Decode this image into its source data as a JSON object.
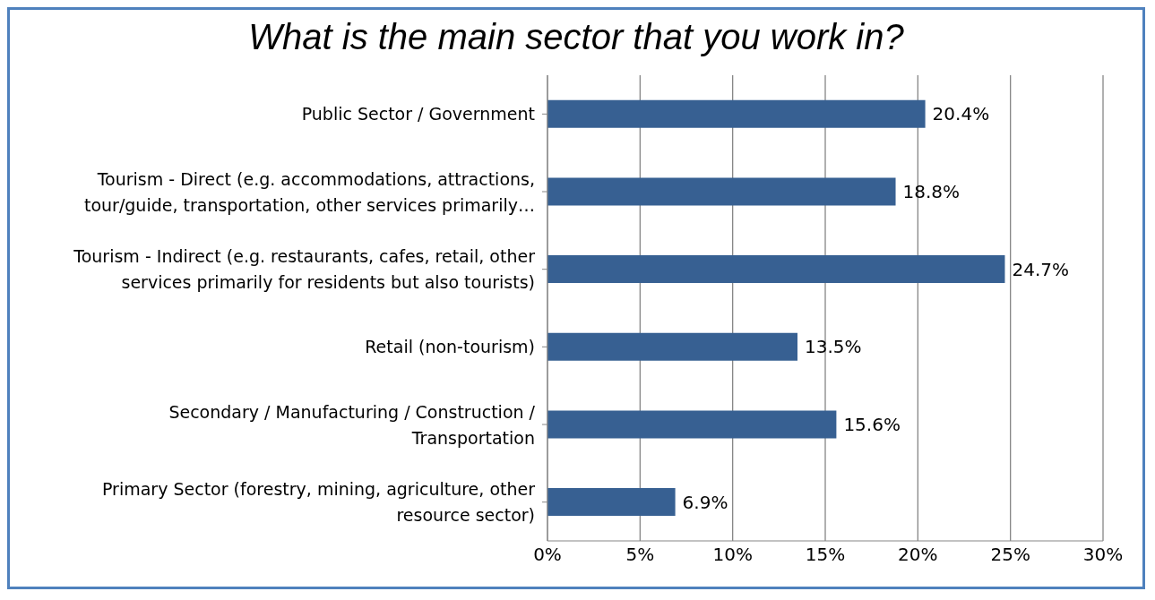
{
  "chart_data": {
    "type": "bar",
    "orientation": "horizontal",
    "title": "What is the main sector that you work in?",
    "categories": [
      "Public Sector / Government",
      "Tourism - Direct (e.g. accommodations, attractions,\ntour/guide, transportation, other services primarily…",
      "Tourism - Indirect (e.g. restaurants, cafes, retail, other\nservices primarily for residents but also tourists)",
      "Retail (non-tourism)",
      "Secondary / Manufacturing / Construction /\nTransportation",
      "Primary Sector (forestry, mining, agriculture, other\nresource sector)"
    ],
    "values": [
      20.4,
      18.8,
      24.7,
      13.5,
      15.6,
      6.9
    ],
    "value_labels": [
      "20.4%",
      "18.8%",
      "24.7%",
      "13.5%",
      "15.6%",
      "6.9%"
    ],
    "color": "#376092",
    "xlim": [
      0,
      30
    ],
    "xticks": [
      {
        "value": 0,
        "label": "0%"
      },
      {
        "value": 5,
        "label": "5%"
      },
      {
        "value": 10,
        "label": "10%"
      },
      {
        "value": 15,
        "label": "15%"
      },
      {
        "value": 20,
        "label": "20%"
      },
      {
        "value": 25,
        "label": "25%"
      },
      {
        "value": 30,
        "label": "30%"
      }
    ],
    "grid": "x",
    "legend": false
  }
}
